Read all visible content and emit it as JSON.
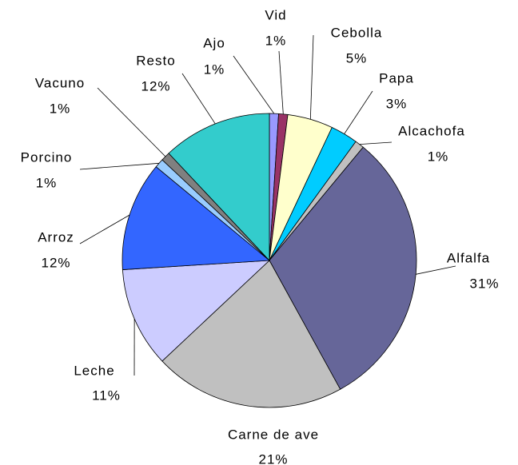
{
  "chart_data": {
    "type": "pie",
    "categories": [
      "Ajo",
      "Vid",
      "Cebolla",
      "Papa",
      "Alcachofa",
      "Alfalfa",
      "Carne de ave",
      "Leche",
      "Arroz",
      "Porcino",
      "Vacuno",
      "Resto"
    ],
    "values": [
      1,
      1,
      5,
      3,
      1,
      31,
      21,
      11,
      12,
      1,
      1,
      12
    ],
    "value_labels": [
      "1%",
      "1%",
      "5%",
      "3%",
      "1%",
      "31%",
      "21%",
      "11%",
      "12%",
      "1%",
      "1%",
      "12%"
    ],
    "colors": [
      "#9999ff",
      "#993366",
      "#ffffcc",
      "#00ccff",
      "#c0c0c0",
      "#666699",
      "#c0c0c0",
      "#ccccff",
      "#3366ff",
      "#99ccff",
      "#808080",
      "#33cccc"
    ]
  }
}
